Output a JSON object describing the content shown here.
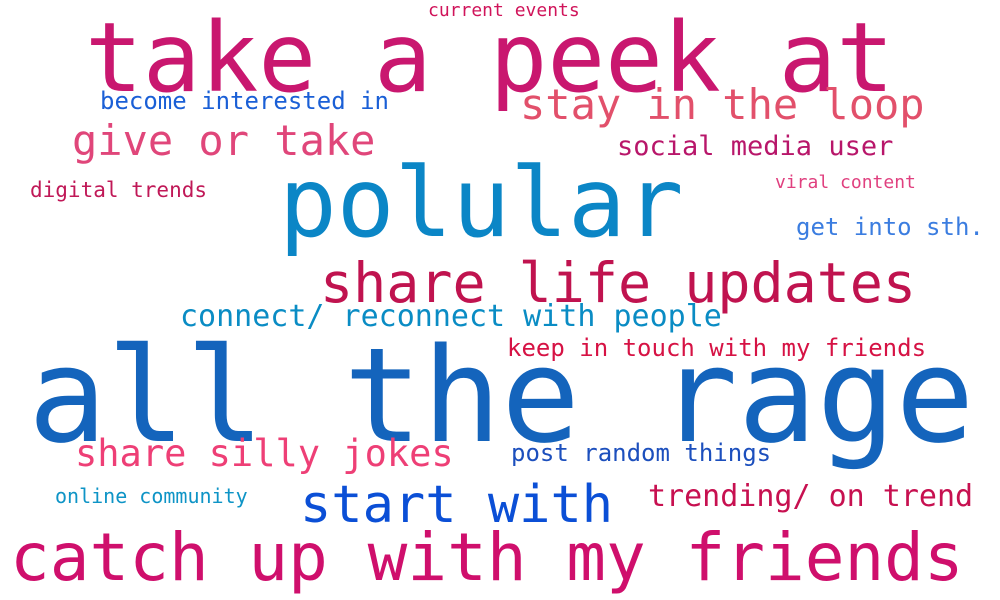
{
  "words": [
    {
      "text": "take a peek at",
      "color": "#c9176f"
    },
    {
      "text": "current events",
      "color": "#d0145a"
    },
    {
      "text": "become interested in",
      "color": "#1a5fd6"
    },
    {
      "text": "stay in the loop",
      "color": "#e2506b"
    },
    {
      "text": "give or take",
      "color": "#e0467a"
    },
    {
      "text": "social media user",
      "color": "#b8166a"
    },
    {
      "text": "polular",
      "color": "#0b86c6"
    },
    {
      "text": "digital trends",
      "color": "#c01857"
    },
    {
      "text": "viral content",
      "color": "#e0407f"
    },
    {
      "text": "get into sth.",
      "color": "#3b7de0"
    },
    {
      "text": "share life updates",
      "color": "#c0134f"
    },
    {
      "text": "connect/ reconnect with people",
      "color": "#0a8cc4"
    },
    {
      "text": "keep in touch with my friends",
      "color": "#d61244"
    },
    {
      "text": "all the rage",
      "color": "#1464bc"
    },
    {
      "text": "share silly jokes",
      "color": "#ee3f76"
    },
    {
      "text": "post random things",
      "color": "#1c4fbd"
    },
    {
      "text": "online community",
      "color": "#0e94c6"
    },
    {
      "text": "start with",
      "color": "#0b4fd6"
    },
    {
      "text": "trending/ on trend",
      "color": "#c71050"
    },
    {
      "text": "catch up with my friends",
      "color": "#cf0f6c"
    }
  ]
}
